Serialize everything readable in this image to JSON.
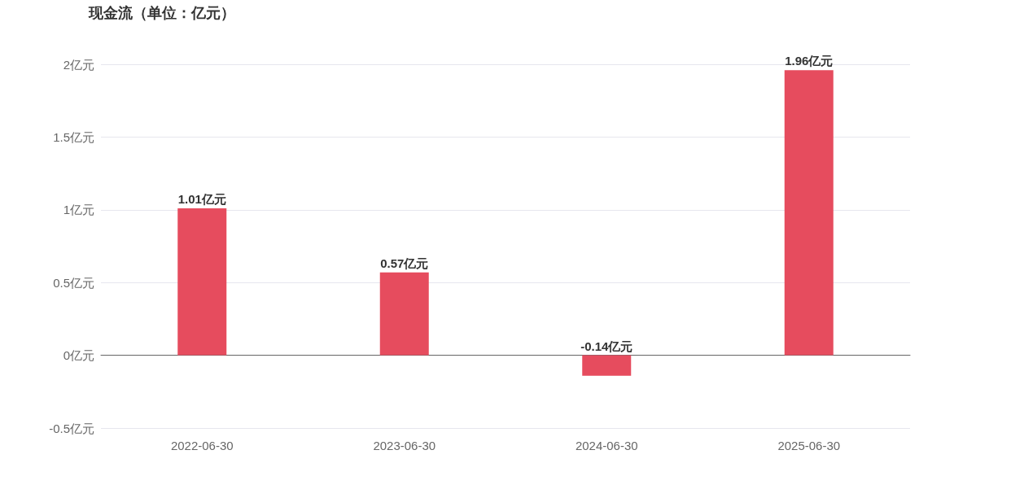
{
  "chart_data": {
    "type": "bar",
    "title": "现金流（单位：亿元）",
    "categories": [
      "2022-06-30",
      "2023-06-30",
      "2024-06-30",
      "2025-06-30"
    ],
    "values": [
      1.01,
      0.57,
      -0.14,
      1.96
    ],
    "value_labels": [
      "1.01亿元",
      "0.57亿元",
      "-0.14亿元",
      "1.96亿元"
    ],
    "color": "#e64c5e",
    "ylim": [
      -0.5,
      2
    ],
    "yticks": [
      {
        "value": -0.5,
        "label": "-0.5亿元"
      },
      {
        "value": 0,
        "label": "0亿元"
      },
      {
        "value": 0.5,
        "label": "0.5亿元"
      },
      {
        "value": 1,
        "label": "1亿元"
      },
      {
        "value": 1.5,
        "label": "1.5亿元"
      },
      {
        "value": 2,
        "label": "2亿元"
      }
    ],
    "grid": true
  }
}
